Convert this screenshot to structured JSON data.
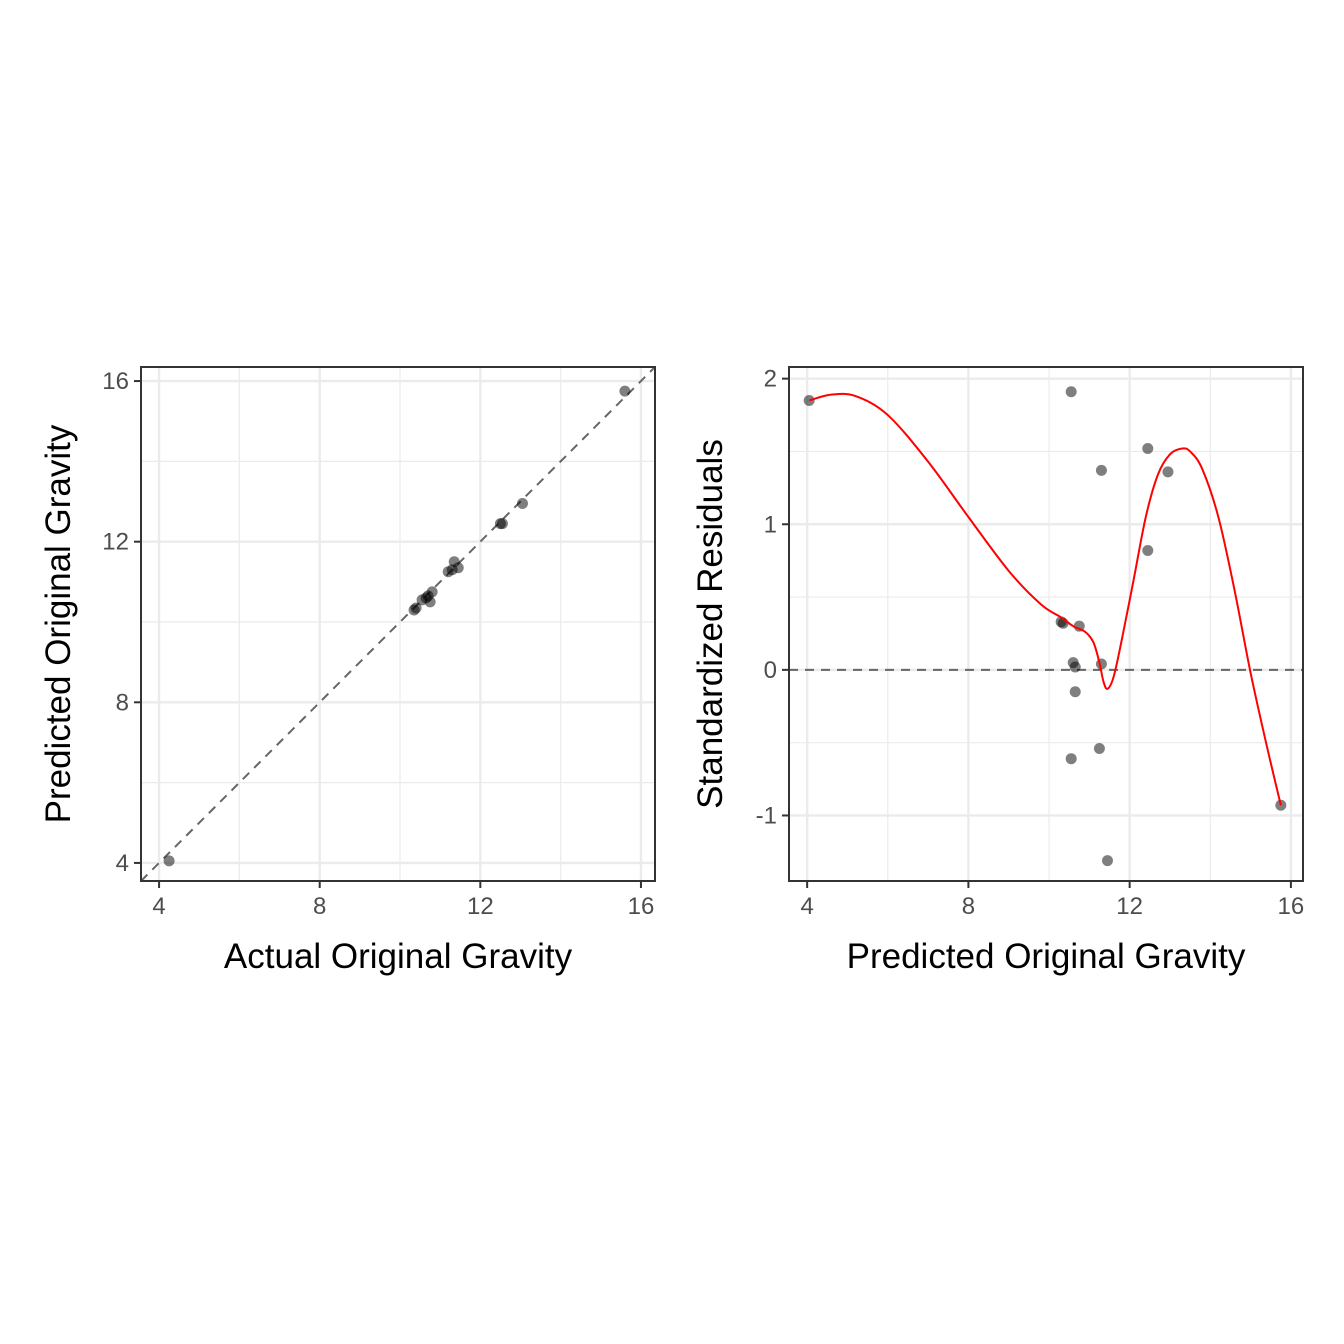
{
  "chart_data": [
    {
      "type": "scatter",
      "title": "",
      "xlabel": "Actual Original Gravity",
      "ylabel": "Predicted Original Gravity",
      "xlim": [
        3.55,
        16.35
      ],
      "ylim": [
        3.55,
        16.35
      ],
      "xticks": [
        4,
        8,
        12,
        16
      ],
      "yticks": [
        4,
        8,
        12,
        16
      ],
      "x_tick_labels": [
        "4",
        "8",
        "12",
        "16"
      ],
      "y_tick_labels": [
        "4",
        "8",
        "12",
        "16"
      ],
      "grid": true,
      "reference_line": {
        "type": "identity",
        "style": "dashed",
        "color": "#666666"
      },
      "points": {
        "x": [
          4.25,
          10.35,
          10.4,
          10.55,
          10.65,
          10.7,
          10.75,
          10.8,
          11.2,
          11.3,
          11.35,
          11.45,
          12.5,
          12.55,
          13.05,
          15.6
        ],
        "y": [
          4.05,
          10.3,
          10.35,
          10.55,
          10.6,
          10.65,
          10.5,
          10.75,
          11.25,
          11.3,
          11.5,
          11.35,
          12.45,
          12.45,
          12.95,
          15.75
        ]
      }
    },
    {
      "type": "scatter",
      "title": "",
      "xlabel": "Predicted Original Gravity",
      "ylabel": "Standardized Residuals",
      "xlim": [
        3.55,
        16.3
      ],
      "ylim": [
        -1.45,
        2.08
      ],
      "xticks": [
        4,
        8,
        12,
        16
      ],
      "yticks": [
        -1,
        0,
        1,
        2
      ],
      "x_tick_labels": [
        "4",
        "8",
        "12",
        "16"
      ],
      "y_tick_labels": [
        "-1",
        "0",
        "1",
        "2"
      ],
      "grid": true,
      "reference_line": {
        "type": "horizontal",
        "y": 0,
        "style": "dashed",
        "color": "#666666"
      },
      "points": {
        "x": [
          4.05,
          10.3,
          10.35,
          10.55,
          10.55,
          10.6,
          10.65,
          10.65,
          10.75,
          11.25,
          11.3,
          11.3,
          11.45,
          12.45,
          12.45,
          12.95,
          15.75
        ],
        "y": [
          1.85,
          0.33,
          0.32,
          1.91,
          -0.61,
          0.05,
          0.02,
          -0.15,
          0.3,
          -0.54,
          0.04,
          1.37,
          -1.31,
          0.82,
          1.52,
          1.36,
          -0.93
        ]
      },
      "smooth": {
        "color": "#ff0000",
        "x": [
          4.05,
          4.6,
          5.2,
          6.0,
          7.0,
          8.0,
          9.0,
          9.8,
          10.3,
          10.6,
          10.9,
          11.1,
          11.25,
          11.35,
          11.45,
          11.6,
          11.8,
          12.1,
          12.4,
          12.7,
          13.0,
          13.3,
          13.5,
          13.8,
          14.2,
          14.6,
          15.0,
          15.4,
          15.75
        ],
        "y": [
          1.85,
          1.89,
          1.88,
          1.75,
          1.43,
          1.05,
          0.68,
          0.45,
          0.36,
          0.3,
          0.26,
          0.19,
          0.05,
          -0.08,
          -0.13,
          -0.05,
          0.2,
          0.62,
          1.05,
          1.34,
          1.48,
          1.52,
          1.5,
          1.38,
          1.05,
          0.55,
          -0.02,
          -0.52,
          -0.93
        ]
      }
    }
  ]
}
